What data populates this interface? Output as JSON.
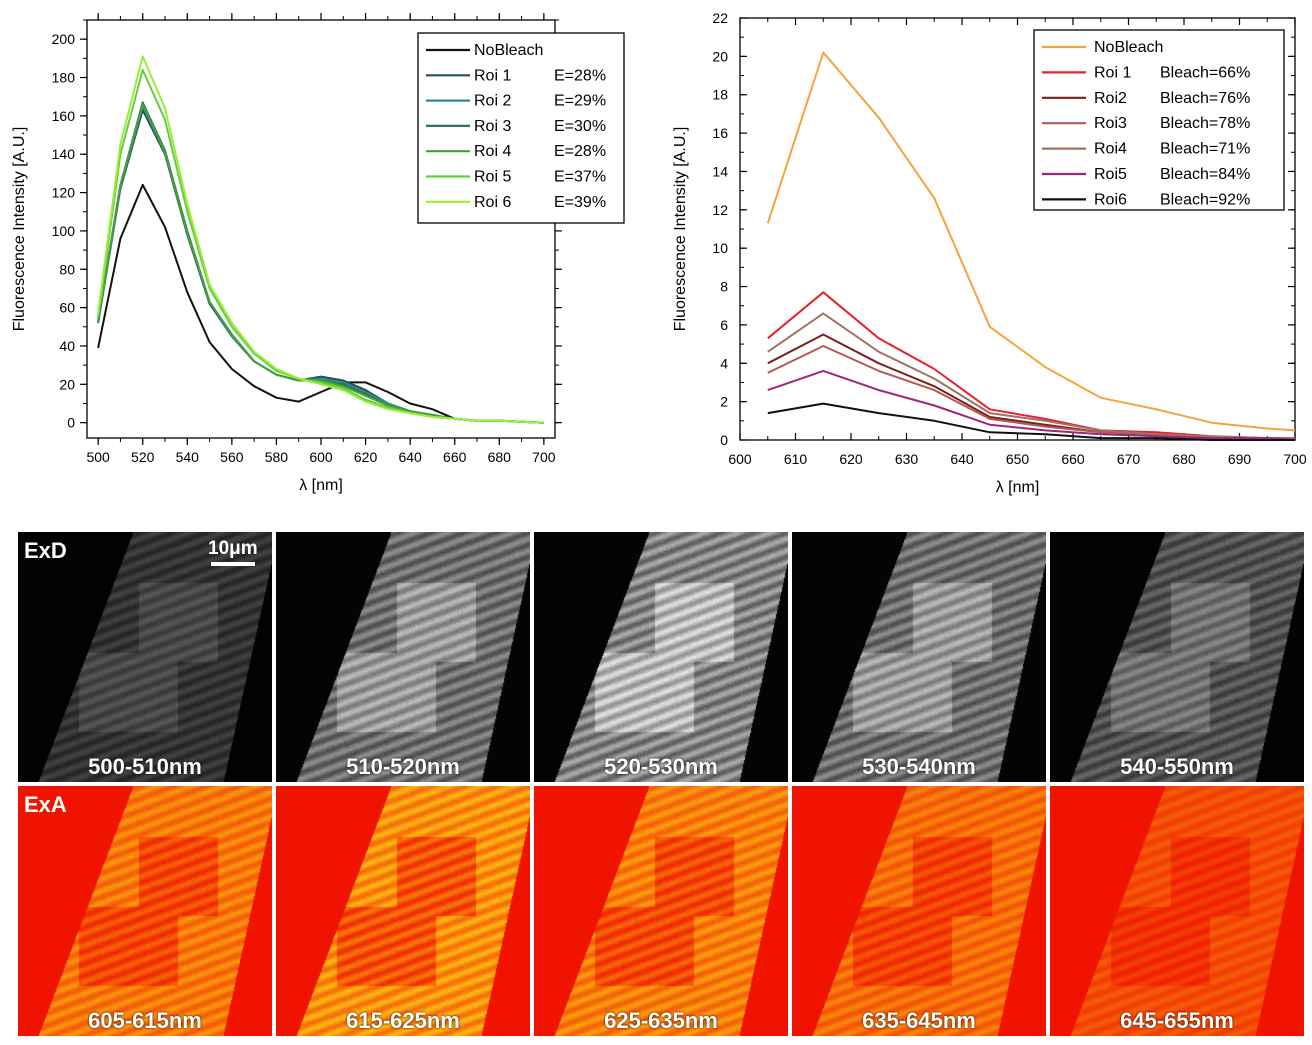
{
  "chart_data": [
    {
      "type": "line",
      "ylabel": "Fluorescence Intensity [A.U.]",
      "xlabel": "λ [nm]",
      "xlim": [
        495,
        705
      ],
      "ylim": [
        -8,
        210
      ],
      "xticks": [
        500,
        520,
        540,
        560,
        580,
        600,
        620,
        640,
        660,
        680,
        700
      ],
      "yticks": [
        0,
        20,
        40,
        60,
        80,
        100,
        120,
        140,
        160,
        180,
        200
      ],
      "legend_position": "top-right",
      "x": [
        500,
        510,
        520,
        530,
        540,
        550,
        560,
        570,
        580,
        590,
        600,
        610,
        620,
        630,
        640,
        650,
        660,
        670,
        680,
        690,
        700
      ],
      "series": [
        {
          "name": "NoBleach",
          "extra": "",
          "color": "#111111",
          "values": [
            39,
            96,
            124,
            102,
            68,
            42,
            28,
            19,
            13,
            11,
            16,
            21,
            21,
            16,
            10,
            7,
            2,
            1,
            1,
            0.5,
            0
          ]
        },
        {
          "name": "Roi 1",
          "extra": "E=28%",
          "color": "#1f4e5a",
          "values": [
            52,
            122,
            163,
            140,
            98,
            62,
            45,
            32,
            25,
            22,
            24,
            22,
            17,
            10,
            6,
            4,
            2,
            1,
            1,
            0.5,
            0
          ]
        },
        {
          "name": "Roi 2",
          "extra": "E=29%",
          "color": "#2e8b8b",
          "values": [
            52,
            123,
            165,
            141,
            99,
            63,
            45,
            32,
            25,
            22,
            23,
            21,
            16,
            10,
            6,
            4,
            2,
            1,
            1,
            0.5,
            0
          ]
        },
        {
          "name": "Roi 3",
          "extra": "E=30%",
          "color": "#237a4d",
          "values": [
            53,
            124,
            167,
            142,
            100,
            63,
            46,
            32,
            25,
            22,
            22,
            20,
            15,
            9,
            6,
            4,
            2,
            1,
            1,
            0.5,
            0
          ]
        },
        {
          "name": "Roi 4",
          "extra": "E=28%",
          "color": "#4a9e3a",
          "values": [
            53,
            124,
            166,
            141,
            99,
            63,
            46,
            32,
            25,
            22,
            22,
            19,
            14,
            9,
            6,
            4,
            2,
            1,
            1,
            0.5,
            0
          ]
        },
        {
          "name": "Roi 5",
          "extra": "E=37%",
          "color": "#66cc44",
          "values": [
            55,
            140,
            184,
            158,
            110,
            70,
            50,
            36,
            27,
            23,
            21,
            18,
            12,
            8,
            5,
            3,
            2,
            1,
            1,
            0.5,
            0
          ]
        },
        {
          "name": "Roi 6",
          "extra": "E=39%",
          "color": "#99ee33",
          "values": [
            57,
            145,
            191,
            164,
            114,
            72,
            52,
            37,
            28,
            23,
            20,
            17,
            11,
            7,
            5,
            3,
            2,
            1,
            1,
            0.5,
            0
          ]
        }
      ]
    },
    {
      "type": "line",
      "ylabel": "Fluorescence Intensity [A.U.]",
      "xlabel": "λ [nm]",
      "xlim": [
        600,
        700
      ],
      "ylim": [
        0,
        22
      ],
      "xticks": [
        600,
        610,
        620,
        630,
        640,
        650,
        660,
        670,
        680,
        690,
        700
      ],
      "yticks": [
        0,
        2,
        4,
        6,
        8,
        10,
        12,
        14,
        16,
        18,
        20,
        22
      ],
      "legend_position": "top-right",
      "x": [
        605,
        615,
        625,
        635,
        645,
        655,
        665,
        675,
        685,
        695,
        700
      ],
      "series": [
        {
          "name": "NoBleach",
          "extra": "",
          "color": "#f7a23a",
          "values": [
            11.3,
            20.2,
            16.8,
            12.6,
            5.9,
            3.8,
            2.2,
            1.6,
            0.9,
            0.6,
            0.5
          ]
        },
        {
          "name": "Roi 1",
          "extra": "Bleach=66%",
          "color": "#e8212b",
          "values": [
            5.3,
            7.7,
            5.3,
            3.7,
            1.6,
            1.1,
            0.5,
            0.4,
            0.2,
            0.1,
            0.1
          ]
        },
        {
          "name": "Roi2",
          "extra": "Bleach=76%",
          "color": "#7a1f1f",
          "values": [
            4.0,
            5.5,
            4.0,
            2.8,
            1.2,
            0.8,
            0.4,
            0.3,
            0.1,
            0.1,
            0.1
          ]
        },
        {
          "name": "Roi3",
          "extra": "Bleach=78%",
          "color": "#b5584f",
          "values": [
            3.5,
            4.9,
            3.6,
            2.6,
            1.1,
            0.7,
            0.4,
            0.3,
            0.1,
            0.1,
            0.1
          ]
        },
        {
          "name": "Roi4",
          "extra": "Bleach=71%",
          "color": "#a07068",
          "values": [
            4.6,
            6.6,
            4.6,
            3.2,
            1.4,
            1.0,
            0.5,
            0.3,
            0.2,
            0.1,
            0.1
          ]
        },
        {
          "name": "Roi5",
          "extra": "Bleach=84%",
          "color": "#a0267a",
          "values": [
            2.6,
            3.6,
            2.6,
            1.8,
            0.8,
            0.5,
            0.3,
            0.2,
            0.1,
            0.1,
            0
          ]
        },
        {
          "name": "Roi6",
          "extra": "Bleach=92%",
          "color": "#111111",
          "values": [
            1.4,
            1.9,
            1.4,
            1.0,
            0.4,
            0.3,
            0.1,
            0.1,
            0,
            0,
            0
          ]
        }
      ]
    }
  ],
  "image_panels": {
    "scalebar_label": "10μm",
    "rows": [
      {
        "label": "ExD",
        "colormap": "gray",
        "tiles": [
          {
            "label": "500-510nm",
            "brightness": 0.35
          },
          {
            "label": "510-520nm",
            "brightness": 0.75
          },
          {
            "label": "520-530nm",
            "brightness": 0.9
          },
          {
            "label": "530-540nm",
            "brightness": 0.75
          },
          {
            "label": "540-550nm",
            "brightness": 0.55
          }
        ]
      },
      {
        "label": "ExA",
        "colormap": "heat",
        "tiles": [
          {
            "label": "605-615nm",
            "brightness": 0.8
          },
          {
            "label": "615-625nm",
            "brightness": 1.0
          },
          {
            "label": "625-635nm",
            "brightness": 0.85
          },
          {
            "label": "635-645nm",
            "brightness": 0.7
          },
          {
            "label": "645-655nm",
            "brightness": 0.45
          }
        ]
      }
    ]
  }
}
